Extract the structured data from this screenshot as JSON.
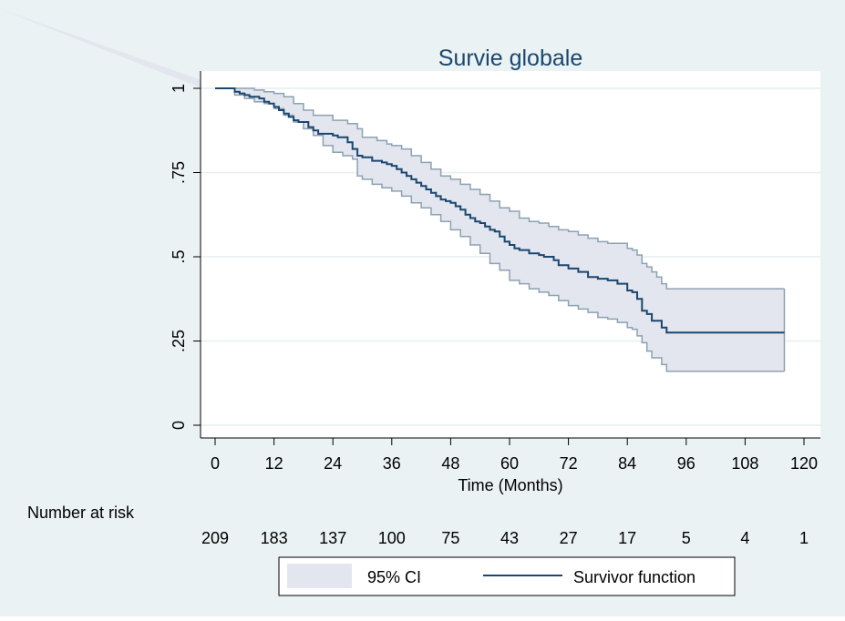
{
  "chart_data": {
    "type": "line",
    "title": "Survie globale",
    "xlabel": "Time (Months)",
    "ylabel": "",
    "xlim": [
      0,
      120
    ],
    "ylim": [
      0,
      1
    ],
    "xticks": [
      0,
      12,
      24,
      36,
      48,
      60,
      72,
      84,
      96,
      108,
      120
    ],
    "yticks": [
      0,
      0.25,
      0.5,
      0.75,
      1
    ],
    "ytick_labels": [
      "0",
      ".25",
      ".5",
      ".75",
      "1"
    ],
    "grid": true,
    "legend_position": "bottom",
    "colors": {
      "background": "#eaf2f3",
      "plot_background": "#ffffff",
      "ci_band": "#e3e6ee",
      "ci_bounds": "#8da1b1",
      "survivor": "#1a476f",
      "grid": "#e6eef0",
      "axis": "#000000"
    },
    "series": [
      {
        "name": "Survivor function",
        "x": [
          0,
          4,
          5,
          6,
          7,
          9,
          10,
          11,
          12,
          13,
          14,
          15,
          16,
          17,
          19,
          20,
          21,
          24,
          25,
          27,
          28,
          29,
          30,
          32,
          34,
          35,
          36,
          37,
          38,
          39,
          40,
          41,
          42,
          43,
          44,
          45,
          46,
          47,
          48,
          49,
          50,
          51,
          52,
          53,
          54,
          55,
          56,
          57,
          58,
          59,
          60,
          61,
          62,
          64,
          66,
          67,
          69,
          70,
          72,
          74,
          76,
          78,
          80,
          82,
          84,
          85,
          86,
          87,
          88,
          89,
          90,
          91,
          92,
          116
        ],
        "y": [
          1,
          0.99,
          0.985,
          0.98,
          0.975,
          0.97,
          0.96,
          0.955,
          0.945,
          0.935,
          0.925,
          0.915,
          0.905,
          0.9,
          0.885,
          0.875,
          0.865,
          0.86,
          0.855,
          0.84,
          0.82,
          0.8,
          0.795,
          0.785,
          0.78,
          0.775,
          0.77,
          0.76,
          0.75,
          0.74,
          0.73,
          0.72,
          0.71,
          0.7,
          0.69,
          0.68,
          0.67,
          0.665,
          0.66,
          0.65,
          0.64,
          0.625,
          0.615,
          0.605,
          0.6,
          0.59,
          0.58,
          0.575,
          0.56,
          0.545,
          0.535,
          0.525,
          0.52,
          0.51,
          0.505,
          0.5,
          0.49,
          0.475,
          0.465,
          0.455,
          0.44,
          0.435,
          0.43,
          0.42,
          0.4,
          0.395,
          0.375,
          0.34,
          0.33,
          0.31,
          0.31,
          0.29,
          0.275,
          0.275
        ]
      },
      {
        "name": "95% CI upper",
        "x": [
          0,
          4,
          8,
          10,
          12,
          14,
          16,
          18,
          20,
          24,
          27,
          29,
          30,
          33,
          35,
          36,
          38,
          40,
          42,
          44,
          46,
          48,
          50,
          52,
          54,
          56,
          58,
          60,
          62,
          64,
          66,
          68,
          70,
          72,
          74,
          76,
          78,
          80,
          82,
          84,
          85,
          86,
          87,
          88,
          89,
          90,
          91,
          92,
          116
        ],
        "y": [
          1,
          1,
          0.995,
          0.99,
          0.985,
          0.975,
          0.955,
          0.935,
          0.92,
          0.905,
          0.895,
          0.88,
          0.855,
          0.845,
          0.835,
          0.83,
          0.82,
          0.8,
          0.78,
          0.76,
          0.74,
          0.73,
          0.715,
          0.7,
          0.685,
          0.665,
          0.645,
          0.635,
          0.615,
          0.605,
          0.6,
          0.59,
          0.58,
          0.575,
          0.565,
          0.555,
          0.545,
          0.54,
          0.54,
          0.525,
          0.52,
          0.505,
          0.48,
          0.47,
          0.455,
          0.44,
          0.42,
          0.405,
          0.405
        ]
      },
      {
        "name": "95% CI lower",
        "x": [
          0,
          4,
          6,
          8,
          10,
          12,
          14,
          16,
          18,
          20,
          22,
          24,
          26,
          28,
          29,
          30,
          32,
          34,
          36,
          38,
          40,
          42,
          44,
          46,
          48,
          50,
          52,
          54,
          56,
          58,
          60,
          62,
          64,
          66,
          68,
          70,
          72,
          74,
          76,
          78,
          80,
          82,
          84,
          85,
          86,
          87,
          88,
          89,
          90,
          91,
          92,
          116
        ],
        "y": [
          1,
          0.98,
          0.97,
          0.96,
          0.955,
          0.94,
          0.92,
          0.9,
          0.88,
          0.86,
          0.83,
          0.81,
          0.8,
          0.79,
          0.74,
          0.73,
          0.715,
          0.705,
          0.695,
          0.68,
          0.66,
          0.645,
          0.625,
          0.605,
          0.58,
          0.56,
          0.535,
          0.51,
          0.48,
          0.46,
          0.43,
          0.42,
          0.405,
          0.395,
          0.385,
          0.37,
          0.355,
          0.345,
          0.335,
          0.32,
          0.315,
          0.305,
          0.29,
          0.285,
          0.265,
          0.245,
          0.22,
          0.2,
          0.2,
          0.18,
          0.16,
          0.16
        ]
      }
    ],
    "risk_table": {
      "label": "Number at risk",
      "times": [
        0,
        12,
        24,
        36,
        48,
        60,
        72,
        84,
        96,
        108,
        120
      ],
      "counts": [
        "209",
        "183",
        "137",
        "100",
        "75",
        "43",
        "27",
        "17",
        "5",
        "4",
        "1"
      ]
    },
    "legend": [
      {
        "label": "95% CI",
        "kind": "ci"
      },
      {
        "label": "Survivor function",
        "kind": "line"
      }
    ]
  }
}
